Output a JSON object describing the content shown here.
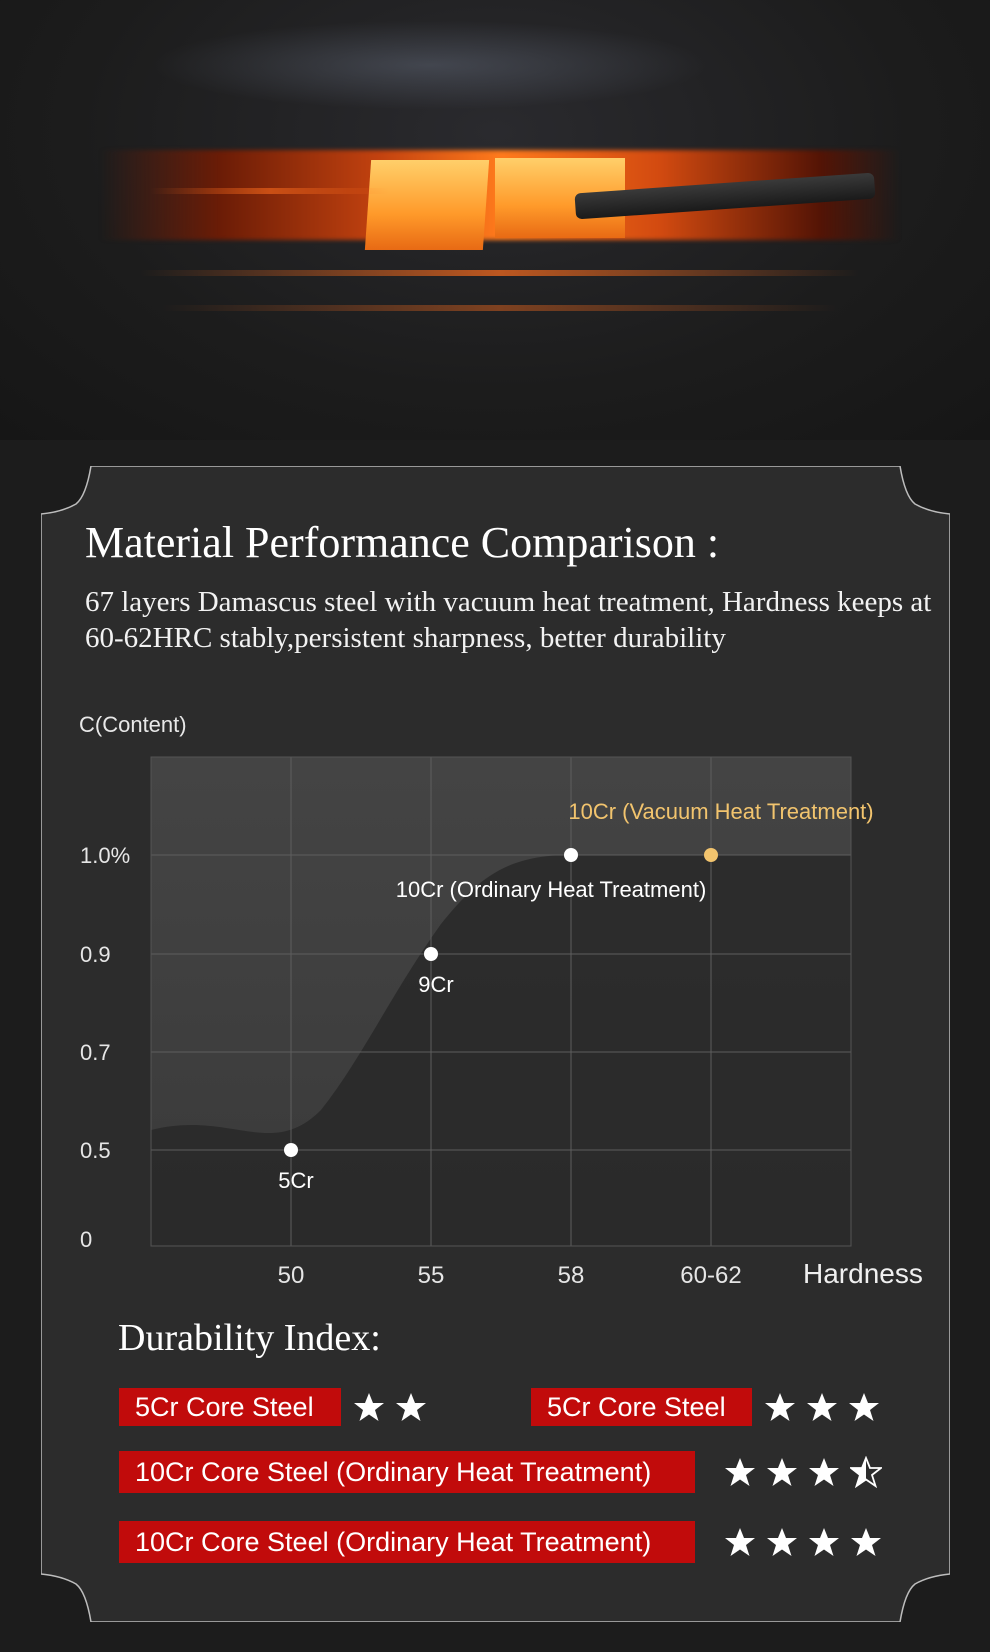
{
  "card": {
    "title": "Material Performance Comparison :",
    "subtitle": "67 layers Damascus steel with vacuum heat treatment, Hardness keeps at 60-62HRC stably,persistent sharpness, better durability"
  },
  "colors": {
    "accent_gold": "#f2c46e",
    "tag_red": "#c10b0b",
    "card_bg": "#2b2b2b"
  },
  "chart_data": {
    "type": "scatter",
    "ylabel": "C(Content)",
    "xlabel": "Hardness",
    "x_ticks": [
      "50",
      "55",
      "58",
      "60-62"
    ],
    "y_ticks": [
      "0",
      "0.5",
      "0.7",
      "0.9",
      "1.0%"
    ],
    "points": [
      {
        "label": "5Cr",
        "x": "50",
        "y": 0.5,
        "highlight": false
      },
      {
        "label": "9Cr",
        "x": "55",
        "y": 0.9,
        "highlight": false
      },
      {
        "label": "10Cr (Ordinary Heat Treatment)",
        "x": "58",
        "y": 1.0,
        "highlight": false
      },
      {
        "label": "10Cr (Vacuum Heat Treatment)",
        "x": "60-62",
        "y": 1.0,
        "highlight": true
      }
    ],
    "grid": true
  },
  "durability": {
    "title": "Durability Index:",
    "rows": [
      {
        "label": "5Cr Core Steel",
        "stars": 2
      },
      {
        "label": "5Cr Core Steel",
        "stars": 3
      },
      {
        "label": "10Cr Core Steel  (Ordinary Heat Treatment)",
        "stars": 3.5
      },
      {
        "label": "10Cr Core Steel  (Ordinary Heat Treatment)",
        "stars": 4
      }
    ]
  }
}
